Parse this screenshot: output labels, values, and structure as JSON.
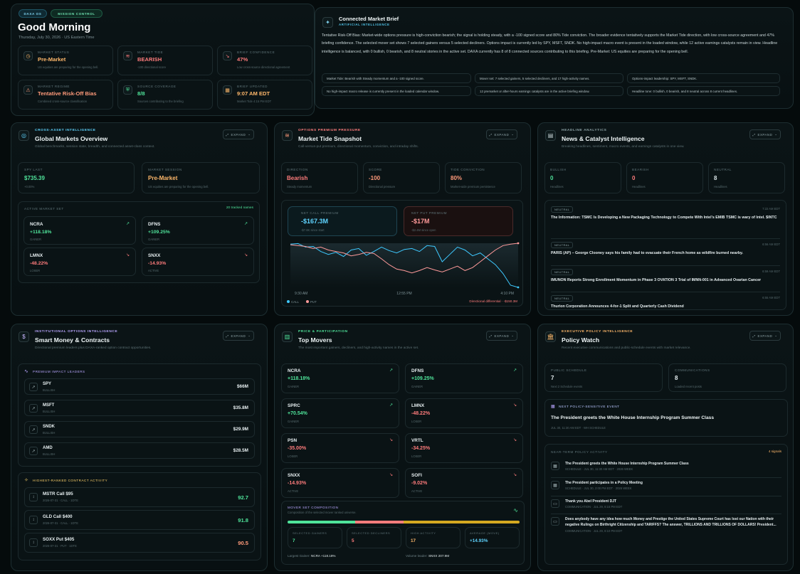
{
  "brief": {
    "pills": [
      "DAXA OS",
      "MISSION CONTROL"
    ],
    "greeting": "Good Morning",
    "datetime": "Thursday, July 30, 2026 · US Eastern Time",
    "stats": [
      {
        "label": "MARKET STATUS",
        "value": "Pre-Market",
        "note": "US equities are preparing for the opening bell.",
        "icon": "clock-icon",
        "color": "#ffb86b"
      },
      {
        "label": "MARKET TIDE",
        "value": "BEARISH",
        "note": "-100 directional score",
        "icon": "tide-icon",
        "color": "#ff7c7c"
      },
      {
        "label": "BRIEF CONFIDENCE",
        "value": "47%",
        "note": "Low cross-source directional agreement",
        "icon": "trend-down-icon",
        "color": "#ff7c7c"
      },
      {
        "label": "MARKET REGIME",
        "value": "Tentative Risk-Off Bias",
        "note": "Combined cross-source classification",
        "icon": "regime-icon",
        "color": "#ff9a7a"
      },
      {
        "label": "SOURCE COVERAGE",
        "value": "8/8",
        "note": "Sources contributing to the briefing",
        "icon": "shield-icon",
        "color": "#4fe39a"
      },
      {
        "label": "BRIEF UPDATED",
        "value": "9:07 AM EDT",
        "note": "Market Tide 4:15 PM EDT",
        "icon": "calendar-icon",
        "color": "#ffb86b"
      }
    ]
  },
  "connected": {
    "title": "Connected Market Brief",
    "kicker": "ARTIFICIAL INTELLIGENCE",
    "body": "Tentative Risk-Off Bias: Market-wide options pressure is high-conviction bearish; the signal is holding steady, with a -100 signed score and 80% Tide conviction. The broader evidence tentatively supports the Market Tide direction, with low cross-source agreement and 47% briefing confidence. The selected mover set shows 7 selected gainers versus 5 selected decliners. Options impact is currently led by SPY, MSFT, SNDK. No high-impact macro event is present in the loaded window, while 12 active earnings catalysts remain in view. Headline intelligence is balanced, with 0 bullish, 0 bearish, and 8 neutral stories in the active set. DAXA currently has 8 of 8 connected sources contributing to this briefing. Pre-Market: US equities are preparing for the opening bell.",
    "chips": [
      "Market Tide: Bearish with Steady momentum and a -100 signed score.",
      "Mover set: 7 selected gainers, 5 selected decliners, and 17 high-activity names.",
      "Options-impact leadership: SPY, MSFT, SNDK.",
      "No high-impact macro release is currently present in the loaded calendar window.",
      "12 premarket or after-hours earnings catalysts are in the active briefing window.",
      "Headline tone: 0 bullish, 0 bearish, and 8 neutral across 8 current headlines."
    ]
  },
  "global": {
    "kicker": "CROSS-ASSET INTELLIGENCE",
    "title": "Global Markets Overview",
    "sub": "Global benchmarks, session state, breadth, and connected asset-class context.",
    "expand": "EXPAND",
    "spy": {
      "label": "SPY LAST",
      "value": "$735.39",
      "note": "+0.00%"
    },
    "session": {
      "label": "MARKET SESSION",
      "value": "Pre-Market",
      "note": "US equities are preparing for the opening bell."
    },
    "movers_label": "ACTIVE MARKET SET",
    "movers_link": "20 tracked names",
    "movers": [
      {
        "sym": "NCRA",
        "chg": "+118.18%",
        "note": "GAINER",
        "up": true
      },
      {
        "sym": "DFNS",
        "chg": "+109.25%",
        "note": "GAINER",
        "up": true
      },
      {
        "sym": "LMNX",
        "chg": "-48.22%",
        "note": "LOSER",
        "up": false
      },
      {
        "sym": "SNXX",
        "chg": "-14.93%",
        "note": "ACTIVE",
        "up": false
      }
    ]
  },
  "tide": {
    "kicker": "OPTIONS PREMIUM PRESSURE",
    "title": "Market Tide Snapshot",
    "sub": "Call-versus-put premium, directional momentum, conviction, and intraday shifts.",
    "expand": "EXPAND",
    "stats": [
      {
        "label": "DIRECTION",
        "value": "Bearish",
        "note": "Steady momentum",
        "color": "#ff7c7c"
      },
      {
        "label": "SCORE",
        "value": "-100",
        "note": "Directional pressure",
        "color": "#ff9a7a"
      },
      {
        "label": "TIDE CONVICTION",
        "value": "80%",
        "note": "Market-wide premium persistence",
        "color": "#ff9a7a"
      }
    ],
    "call": {
      "label": "NET CALL PREMIUM",
      "value": "-$167.3M",
      "note": "-$7.8K since start"
    },
    "put": {
      "label": "NET PUT PREMIUM",
      "value": "-$17M",
      "note": "-$2.4M since open"
    },
    "legend_call": "CALL",
    "legend_put": "PUT",
    "differential": "Directional differential · -$150.3M"
  },
  "chart_data": {
    "type": "line",
    "x_labels": [
      "9:30 AM",
      "12:55 PM",
      "4:10 PM"
    ],
    "series": [
      {
        "name": "CALL",
        "color": "#3ec9ff",
        "values": [
          -20,
          -18,
          -30,
          -28,
          -45,
          -55,
          -48,
          -62,
          -40,
          -35,
          -58,
          -45,
          -30,
          -42,
          -50,
          -38,
          -35,
          -45,
          -25,
          -28,
          -80,
          -55,
          -30,
          -40,
          -60,
          -50,
          -70,
          -90,
          -120,
          -160,
          -167.3
        ]
      },
      {
        "name": "PUT",
        "color": "#ff9a9a",
        "values": [
          -22,
          -25,
          -28,
          -35,
          -30,
          -40,
          -45,
          -50,
          -60,
          -55,
          -48,
          -52,
          -70,
          -90,
          -105,
          -110,
          -118,
          -110,
          -100,
          -108,
          -115,
          -105,
          -95,
          -110,
          -100,
          -80,
          -60,
          -40,
          -25,
          -20,
          -17
        ]
      }
    ]
  },
  "news": {
    "kicker": "HEADLINE ANALYTICS",
    "title": "News & Catalyst Intelligence",
    "sub": "Breaking headlines, sentiment, macro events, and earnings catalysts in one view.",
    "expand": "EXPAND",
    "stats": [
      {
        "label": "BULLISH",
        "value": "0",
        "note": "Headlines",
        "color": "#4fe39a"
      },
      {
        "label": "BEARISH",
        "value": "0",
        "note": "Headlines",
        "color": "#ff7c7c"
      },
      {
        "label": "NEUTRAL",
        "value": "8",
        "note": "Headlines",
        "color": "#d8e3e5"
      }
    ],
    "items": [
      {
        "badge": "NEUTRAL",
        "time": "7:22 AM EDT",
        "text": "The Information: TSMC Is Developing a New Packaging Technology to Compete With Intel's EMIB TSMC is wary of Intel. $INTC"
      },
      {
        "badge": "NEUTRAL",
        "time": "6:56 AM EDT",
        "text": "PARIS (AP) – George Clooney says his family had to evacuate their French home as wildfire burned nearby."
      },
      {
        "badge": "NEUTRAL",
        "time": "6:59 AM EDT",
        "text": "IMUNON Reports Strong Enrollment Momentum in Phase 3 OVATION 3 Trial of IMNN-001 in Advanced Ovarian Cancer"
      },
      {
        "badge": "NEUTRAL",
        "time": "6:55 AM EDT",
        "text": "Thurion Corporation Announces 4-for-1 Split and Quarterly Cash Dividend"
      }
    ]
  },
  "smart": {
    "kicker": "INSTITUTIONAL OPTIONS INTELLIGENCE",
    "title": "Smart Money & Contracts",
    "sub": "Directional premium leaders plus DAXA-ranked option contract opportunities.",
    "expand": "EXPAND",
    "leaders_label": "PREMIUM IMPACT LEADERS",
    "leaders": [
      {
        "sym": "SPY",
        "note": "BULLISH",
        "value": "$66M"
      },
      {
        "sym": "MSFT",
        "note": "BULLISH",
        "value": "$35.8M"
      },
      {
        "sym": "SNDK",
        "note": "BULLISH",
        "value": "$29.9M"
      },
      {
        "sym": "AMD",
        "note": "BULLISH",
        "value": "$28.5M"
      }
    ],
    "contracts_label": "HIGHEST-RANKED CONTRACT ACTIVITY",
    "contracts": [
      {
        "name": "MSTR Call $95",
        "note": "2026-07-31 · CALL · 1DTE",
        "score": "92.7",
        "color": "#4fe39a"
      },
      {
        "name": "GLD Call $400",
        "note": "2026-07-31 · CALL · 1DTE",
        "score": "91.8",
        "color": "#4fe39a"
      },
      {
        "name": "SOXX Put $405",
        "note": "2026-07-31 · PUT · 1DTE",
        "score": "90.5",
        "color": "#ff9a7a"
      }
    ]
  },
  "movers": {
    "kicker": "PRICE & PARTICIPATION",
    "title": "Top Movers",
    "sub": "The most important gainers, decliners, and high-activity names in the active set.",
    "expand": "EXPAND",
    "items": [
      {
        "sym": "NCRA",
        "chg": "+118.18%",
        "note": "GAINER",
        "up": true
      },
      {
        "sym": "DFNS",
        "chg": "+109.25%",
        "note": "GAINER",
        "up": true
      },
      {
        "sym": "SPRC",
        "chg": "+70.54%",
        "note": "GAINER",
        "up": true
      },
      {
        "sym": "LMNX",
        "chg": "-48.22%",
        "note": "LOSER",
        "up": false
      },
      {
        "sym": "PSN",
        "chg": "-35.00%",
        "note": "LOSER",
        "up": false
      },
      {
        "sym": "VRTL",
        "chg": "-34.25%",
        "note": "LOSER",
        "up": false
      },
      {
        "sym": "SNXX",
        "chg": "-14.93%",
        "note": "ACTIVE",
        "up": false
      },
      {
        "sym": "SOFI",
        "chg": "-9.02%",
        "note": "ACTIVE",
        "up": false
      }
    ],
    "composition_label": "MOVER SET COMPOSITION",
    "composition_sub": "Composition of the selected mover ranked universe.",
    "comp_stats": [
      {
        "label": "SELECTED GAINERS",
        "value": "7",
        "color": "#4fe39a"
      },
      {
        "label": "SELECTED DECLINERS",
        "value": "5",
        "color": "#ff7c7c"
      },
      {
        "label": "HIGH ACTIVITY",
        "value": "17",
        "color": "#ffb86b"
      },
      {
        "label": "AVERAGE (MOVE)",
        "value": "+14.93%",
        "color": "#5fd4ff"
      }
    ],
    "comp_split": [
      0.29,
      0.21,
      0.5
    ],
    "largest_label": "Largest Gainer:",
    "largest_value": "NCRA +118.18%",
    "volume_label": "Volume leader:",
    "volume_value": "SNXX 207.9M"
  },
  "policy": {
    "kicker": "EXECUTIVE POLICY INTELLIGENCE",
    "title": "Policy Watch",
    "sub": "Recent executive communications and public-schedule events with market relevance.",
    "expand": "EXPAND",
    "stats": [
      {
        "label": "PUBLIC SCHEDULE",
        "value": "7",
        "note": "Next 2 Schedule events"
      },
      {
        "label": "COMMUNICATIONS",
        "value": "8",
        "note": "Loaded recent posts"
      }
    ],
    "next_label": "NEXT POLICY-SENSITIVE EVENT",
    "next_title": "The President greets the White House Internship Program Summer Class",
    "next_time": "JUL 30, 11:30 AM EDT · WH SCHEDULE",
    "activity_label": "NEAR-TERM POLICY ACTIVITY",
    "activity_count": "4 signals",
    "activity": [
      {
        "text": "The President greets the White House Internship Program Summer Class",
        "note": "SCHEDULE · JUL 30, 11:30 AM EDT · 2026 WEEK"
      },
      {
        "text": "The President participates in a Policy Meeting",
        "note": "SCHEDULE · JUL 30, 2:00 PM EDT · 2026 WEEK"
      },
      {
        "text": "Thank you Abel President DJT",
        "note": "COMMUNICATION · JUL 29, 8:15 PM EDT"
      },
      {
        "text": "Does anybody have any idea how much Money and Prestige the United States Supreme Court has lost our Nation with their negative Rulings on Birthright Citizenship and TARIFFS? The answer, TRILLIONS AND TRILLIONS OF DOLLARS! President...",
        "note": "COMMUNICATION · JUL 29, 8:10 PM EDT"
      }
    ]
  }
}
